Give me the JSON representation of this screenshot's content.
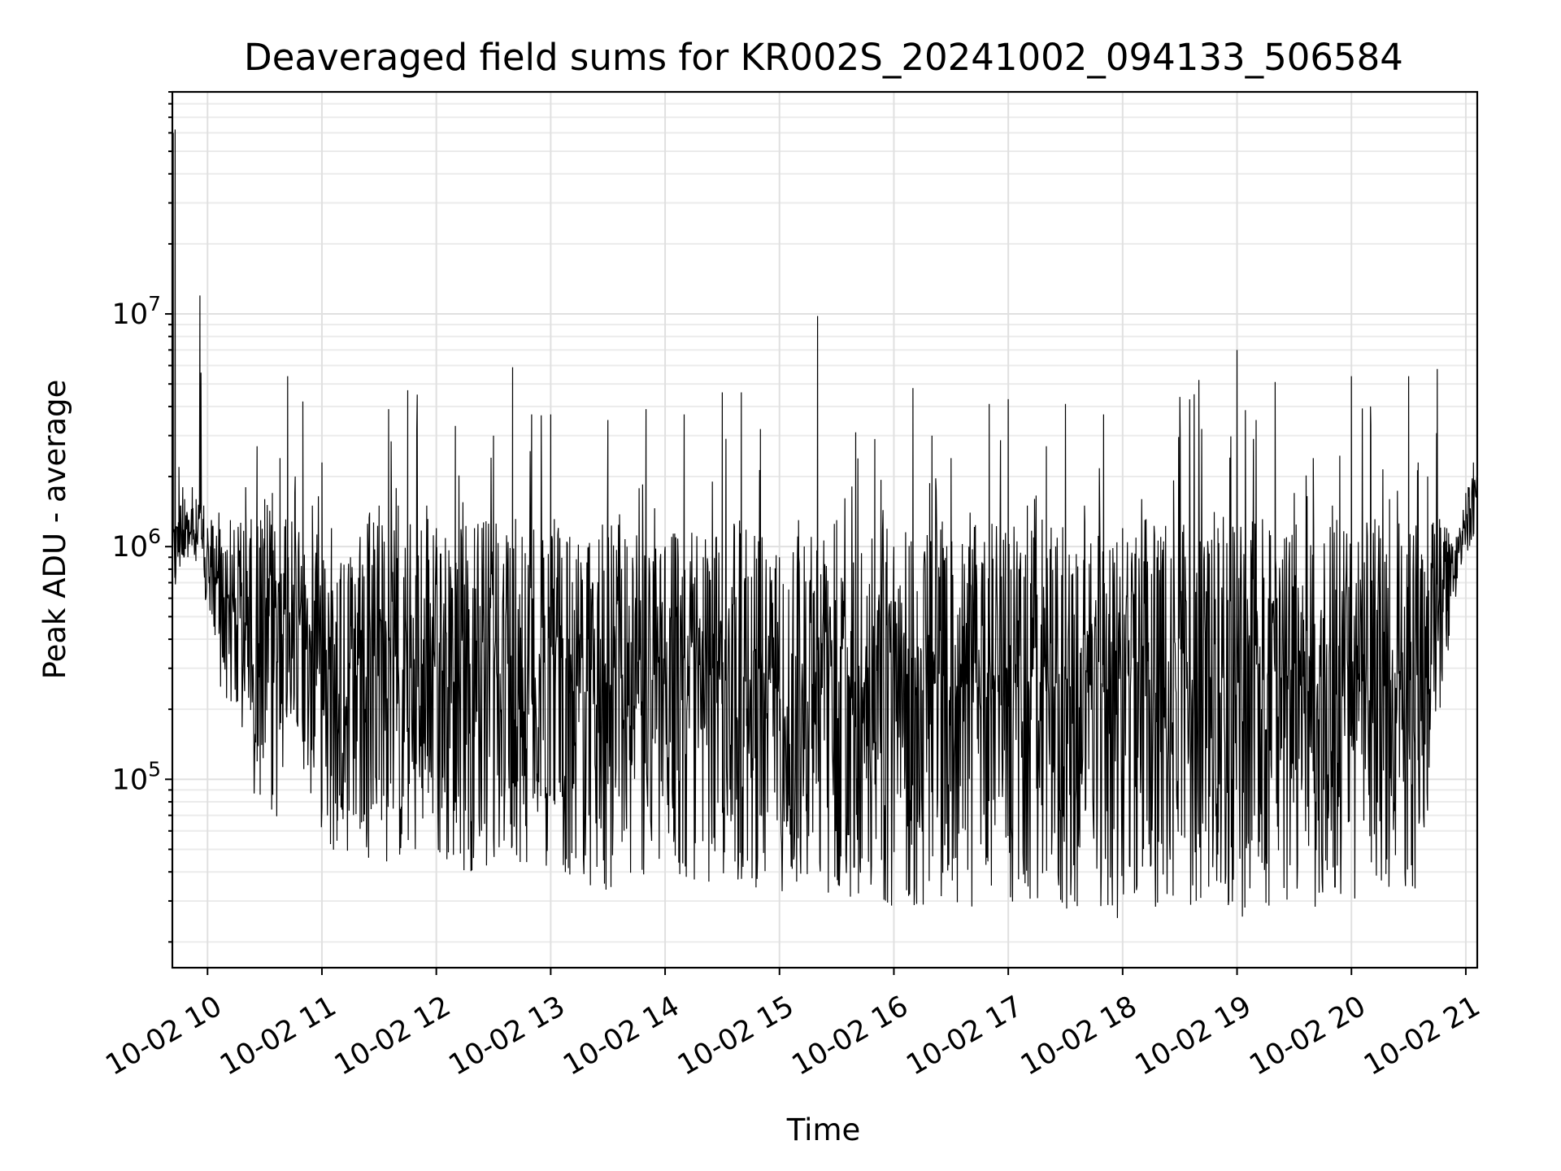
{
  "chart_data": {
    "type": "line",
    "title": "Deaveraged field sums for KR002S_20241002_094133_506584",
    "xlabel": "Time",
    "ylabel": "Peak ADU - average",
    "yscale": "log",
    "ylim": [
      15500,
      90000000
    ],
    "xlim": [
      "2024-10-02 09:41:33",
      "2024-10-02 21:06:00"
    ],
    "grid": true,
    "legend": "none",
    "x_ticks": [
      "2024-10-02 10:00",
      "2024-10-02 11:00",
      "2024-10-02 12:00",
      "2024-10-02 13:00",
      "2024-10-02 14:00",
      "2024-10-02 15:00",
      "2024-10-02 16:00",
      "2024-10-02 17:00",
      "2024-10-02 18:00",
      "2024-10-02 19:00",
      "2024-10-02 20:00",
      "2024-10-02 21:00"
    ],
    "x_tick_labels": [
      "10-02 10",
      "10-02 11",
      "10-02 12",
      "10-02 13",
      "10-02 14",
      "10-02 15",
      "10-02 16",
      "10-02 17",
      "10-02 18",
      "10-02 19",
      "10-02 20",
      "10-02 21"
    ],
    "y_ticks": [
      100000,
      1000000,
      10000000
    ],
    "y_tick_labels": [
      {
        "base": "10",
        "exp": "5"
      },
      {
        "base": "10",
        "exp": "6"
      },
      {
        "base": "10",
        "exp": "7"
      }
    ],
    "series_color": "#000000",
    "series": [
      {
        "x": [
          "2024-10-02 09:41:33",
          "2024-10-02 09:42:00",
          "2024-10-02 09:43:00",
          "2024-10-02 09:44:00",
          "2024-10-02 09:45:00",
          "2024-10-02 09:46:00",
          "2024-10-02 09:47:00",
          "2024-10-02 09:48:00",
          "2024-10-02 09:50:00",
          "2024-10-02 09:52:00",
          "2024-10-02 09:54:00",
          "2024-10-02 09:56:00",
          "2024-10-02 09:58:00",
          "2024-10-02 10:00:00",
          "2024-10-02 10:02:00",
          "2024-10-02 10:06:00",
          "2024-10-02 10:12:00",
          "2024-10-02 10:20:00",
          "2024-10-02 10:26:00",
          "2024-10-02 10:30:00",
          "2024-10-02 10:34:00",
          "2024-10-02 10:38:00",
          "2024-10-02 10:42:00",
          "2024-10-02 10:46:00",
          "2024-10-02 10:50:00",
          "2024-10-02 10:55:00",
          "2024-10-02 11:00:00",
          "2024-10-02 11:05:00",
          "2024-10-02 11:08:00",
          "2024-10-02 11:10:00",
          "2024-10-02 11:15:00",
          "2024-10-02 11:20:00",
          "2024-10-02 11:25:00",
          "2024-10-02 11:30:00",
          "2024-10-02 11:35:00",
          "2024-10-02 11:40:00",
          "2024-10-02 11:45:00",
          "2024-10-02 11:50:00",
          "2024-10-02 11:55:00",
          "2024-10-02 12:00:00",
          "2024-10-02 12:10:00",
          "2024-10-02 12:20:00",
          "2024-10-02 12:30:00",
          "2024-10-02 12:40:00",
          "2024-10-02 12:45:00",
          "2024-10-02 12:50:00",
          "2024-10-02 13:00:00",
          "2024-10-02 13:10:00",
          "2024-10-02 13:20:00",
          "2024-10-02 13:30:00",
          "2024-10-02 13:40:00",
          "2024-10-02 13:50:00",
          "2024-10-02 14:00:00",
          "2024-10-02 14:10:00",
          "2024-10-02 14:20:00",
          "2024-10-02 14:30:00",
          "2024-10-02 14:40:00",
          "2024-10-02 14:50:00",
          "2024-10-02 15:00:00",
          "2024-10-02 15:10:00",
          "2024-10-02 15:20:00",
          "2024-10-02 15:30:00",
          "2024-10-02 15:40:00",
          "2024-10-02 15:50:00",
          "2024-10-02 16:00:00",
          "2024-10-02 16:10:00",
          "2024-10-02 16:20:00",
          "2024-10-02 16:30:00",
          "2024-10-02 16:40:00",
          "2024-10-02 16:50:00",
          "2024-10-02 17:00:00",
          "2024-10-02 17:10:00",
          "2024-10-02 17:20:00",
          "2024-10-02 17:30:00",
          "2024-10-02 17:40:00",
          "2024-10-02 17:50:00",
          "2024-10-02 18:00:00",
          "2024-10-02 18:10:00",
          "2024-10-02 18:20:00",
          "2024-10-02 18:30:00",
          "2024-10-02 18:40:00",
          "2024-10-02 18:50:00",
          "2024-10-02 19:00:00",
          "2024-10-02 19:10:00",
          "2024-10-02 19:20:00",
          "2024-10-02 19:30:00",
          "2024-10-02 19:40:00",
          "2024-10-02 19:50:00",
          "2024-10-02 20:00:00",
          "2024-10-02 20:10:00",
          "2024-10-02 20:20:00",
          "2024-10-02 20:30:00",
          "2024-10-02 20:35:00",
          "2024-10-02 20:40:00",
          "2024-10-02 20:45:00",
          "2024-10-02 20:50:00",
          "2024-10-02 20:55:00",
          "2024-10-02 21:00:00",
          "2024-10-02 21:04:00",
          "2024-10-02 21:06:00"
        ],
        "low": [
          1000000,
          900000,
          600000,
          900000,
          650000,
          900000,
          800000,
          900000,
          900000,
          900000,
          700000,
          900000,
          600000,
          500000,
          400000,
          250000,
          200000,
          130000,
          55000,
          130000,
          60000,
          70000,
          150000,
          200000,
          110000,
          80000,
          60000,
          45000,
          45000,
          45000,
          50000,
          55000,
          45000,
          45000,
          42000,
          42000,
          45000,
          45000,
          45000,
          42000,
          40000,
          40000,
          42000,
          45000,
          42000,
          42000,
          42000,
          38000,
          35000,
          32000,
          35000,
          38000,
          37000,
          36000,
          36000,
          35000,
          34000,
          34000,
          33000,
          32000,
          32000,
          31000,
          31000,
          32000,
          28000,
          28000,
          28000,
          27000,
          28000,
          29000,
          28000,
          27000,
          27000,
          26000,
          27000,
          26000,
          25000,
          26000,
          27000,
          28000,
          28000,
          26000,
          25000,
          26000,
          28000,
          28000,
          28000,
          28000,
          29000,
          29000,
          30000,
          31000,
          35000,
          60000,
          150000,
          300000,
          600000,
          900000,
          1100000,
          1200000
        ],
        "high": [
          1500000,
          60000000,
          62000000,
          1200000,
          2200000,
          1500000,
          1800000,
          1600000,
          1300000,
          1800000,
          1600000,
          12000000,
          1500000,
          1200000,
          1300000,
          1400000,
          1300000,
          1800000,
          2700000,
          1600000,
          1700000,
          2400000,
          5400000,
          2000000,
          4200000,
          1500000,
          2300000,
          1200000,
          700000,
          850000,
          900000,
          1100000,
          1400000,
          1500000,
          3900000,
          1500000,
          4700000,
          4500000,
          1500000,
          1200000,
          3300000,
          1200000,
          3000000,
          5900000,
          1100000,
          3700000,
          3700000,
          1100000,
          1000000,
          3500000,
          1000000,
          3900000,
          1000000,
          3700000,
          900000,
          4600000,
          4600000,
          3200000,
          900000,
          1300000,
          9800000,
          1300000,
          3100000,
          2900000,
          1000000,
          4800000,
          3000000,
          2400000,
          1400000,
          4100000,
          4300000,
          1500000,
          2700000,
          4100000,
          1500000,
          3700000,
          1200000,
          1600000,
          1100000,
          4400000,
          5200000,
          1200000,
          7000000,
          3500000,
          5100000,
          1700000,
          2400000,
          1500000,
          5400000,
          4000000,
          1600000,
          5400000,
          2300000,
          2000000,
          5800000,
          1200000,
          1100000,
          1700000,
          2300000,
          2100000
        ]
      }
    ]
  }
}
